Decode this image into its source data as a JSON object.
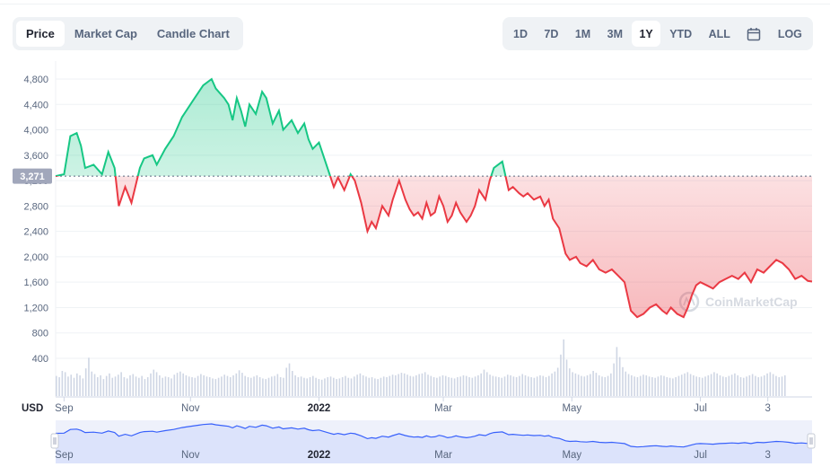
{
  "controls": {
    "left_tabs": [
      {
        "label": "Price",
        "active": true
      },
      {
        "label": "Market Cap",
        "active": false
      },
      {
        "label": "Candle Chart",
        "active": false
      }
    ],
    "ranges": [
      {
        "label": "1D",
        "active": false
      },
      {
        "label": "7D",
        "active": false
      },
      {
        "label": "1M",
        "active": false
      },
      {
        "label": "3M",
        "active": false
      },
      {
        "label": "1Y",
        "active": true
      },
      {
        "label": "YTD",
        "active": false
      },
      {
        "label": "ALL",
        "active": false
      }
    ],
    "calendar_icon": "calendar-icon",
    "log_label": "LOG"
  },
  "watermark": "CoinMarketCap",
  "colors": {
    "up": "#16c784",
    "down": "#ea3943",
    "volume": "#cfd6e4",
    "navigator_line": "#3861fb",
    "reference_label_bg": "#a1a7bb"
  },
  "chart_data": {
    "type": "area",
    "currency_label": "USD",
    "reference_price": 3271,
    "reference_label": "3,271",
    "y_ticks": [
      "4,800",
      "4,400",
      "4,000",
      "3,600",
      "3,200",
      "2,800",
      "2,400",
      "2,000",
      "1,600",
      "1,200",
      "800",
      "400"
    ],
    "y_tick_values": [
      4800,
      4400,
      4000,
      3600,
      3200,
      2800,
      2400,
      2000,
      1600,
      1200,
      800,
      400
    ],
    "ylim": [
      200,
      5000
    ],
    "x_ticks": [
      {
        "label": "Sep",
        "day": 4,
        "bold": false
      },
      {
        "label": "Nov",
        "day": 64,
        "bold": false
      },
      {
        "label": "2022",
        "day": 125,
        "bold": true
      },
      {
        "label": "Mar",
        "day": 184,
        "bold": false
      },
      {
        "label": "May",
        "day": 245,
        "bold": false
      },
      {
        "label": "Jul",
        "day": 306,
        "bold": false
      },
      {
        "label": "3",
        "day": 338,
        "bold": false
      }
    ],
    "xlim": [
      0,
      359
    ],
    "series": [
      {
        "x": [
          0,
          4,
          7,
          10,
          12,
          14,
          18,
          22,
          25,
          28,
          30,
          33,
          36,
          40,
          42,
          46,
          48,
          52,
          56,
          60,
          62,
          65,
          68,
          70,
          74,
          76,
          80,
          82,
          84,
          86,
          88,
          90,
          92,
          95,
          98,
          100,
          103,
          106,
          108,
          112,
          115,
          118,
          120,
          122,
          125,
          128,
          130,
          132,
          134,
          137,
          140,
          142,
          145,
          148,
          150,
          152,
          155,
          158,
          160,
          163,
          166,
          168,
          170,
          172,
          174,
          176,
          178,
          180,
          182,
          184,
          186,
          188,
          190,
          192,
          195,
          197,
          199,
          201,
          204,
          206,
          208,
          212,
          215,
          217,
          220,
          222,
          224,
          227,
          230,
          232,
          234,
          236,
          239,
          242,
          244,
          247,
          249,
          252,
          255,
          258,
          261,
          264,
          267,
          270,
          273,
          276,
          279,
          282,
          285,
          288,
          290,
          292,
          295,
          298,
          300,
          302,
          304,
          306,
          309,
          312,
          315,
          318,
          321,
          324,
          327,
          330,
          333,
          336,
          339,
          342,
          345,
          348,
          351,
          354,
          357,
          359
        ],
        "values": [
          3271,
          3300,
          3900,
          3950,
          3750,
          3400,
          3450,
          3300,
          3650,
          3400,
          2800,
          3100,
          2850,
          3400,
          3550,
          3600,
          3450,
          3700,
          3900,
          4200,
          4300,
          4450,
          4600,
          4700,
          4800,
          4650,
          4500,
          4400,
          4150,
          4500,
          4300,
          4050,
          4400,
          4250,
          4600,
          4500,
          4100,
          4300,
          4000,
          4150,
          3950,
          4100,
          3850,
          3700,
          3800,
          3500,
          3300,
          3100,
          3250,
          3050,
          3300,
          3200,
          2850,
          2400,
          2550,
          2450,
          2800,
          2650,
          2900,
          3200,
          2900,
          2750,
          2650,
          2700,
          2600,
          2850,
          2650,
          2700,
          2950,
          2800,
          2550,
          2650,
          2850,
          2700,
          2550,
          2650,
          2800,
          3050,
          2900,
          3200,
          3400,
          3500,
          3050,
          3100,
          3000,
          2950,
          3000,
          2900,
          2950,
          2800,
          2900,
          2600,
          2450,
          2050,
          1950,
          2000,
          1900,
          1850,
          1950,
          1800,
          1750,
          1800,
          1700,
          1600,
          1150,
          1050,
          1100,
          1200,
          1250,
          1150,
          1100,
          1200,
          1100,
          1050,
          1200,
          1400,
          1550,
          1600,
          1550,
          1500,
          1600,
          1650,
          1700,
          1650,
          1750,
          1600,
          1800,
          1750,
          1850,
          1950,
          1900,
          1800,
          1650,
          1700,
          1620,
          1610
        ]
      }
    ],
    "volume": {
      "x_step_days": 1.4,
      "values": [
        0.32,
        0.3,
        0.4,
        0.38,
        0.31,
        0.34,
        0.29,
        0.36,
        0.33,
        0.28,
        0.44,
        0.61,
        0.39,
        0.35,
        0.3,
        0.33,
        0.27,
        0.32,
        0.36,
        0.29,
        0.31,
        0.34,
        0.38,
        0.3,
        0.28,
        0.33,
        0.35,
        0.31,
        0.29,
        0.32,
        0.27,
        0.3,
        0.36,
        0.42,
        0.38,
        0.33,
        0.29,
        0.31,
        0.3,
        0.28,
        0.34,
        0.37,
        0.39,
        0.36,
        0.33,
        0.31,
        0.3,
        0.29,
        0.32,
        0.35,
        0.33,
        0.31,
        0.3,
        0.28,
        0.27,
        0.29,
        0.31,
        0.34,
        0.32,
        0.3,
        0.33,
        0.36,
        0.41,
        0.37,
        0.32,
        0.3,
        0.29,
        0.31,
        0.33,
        0.3,
        0.28,
        0.27,
        0.29,
        0.31,
        0.32,
        0.35,
        0.3,
        0.29,
        0.45,
        0.52,
        0.4,
        0.33,
        0.3,
        0.31,
        0.29,
        0.28,
        0.3,
        0.32,
        0.29,
        0.27,
        0.26,
        0.28,
        0.3,
        0.31,
        0.29,
        0.27,
        0.28,
        0.3,
        0.32,
        0.29,
        0.28,
        0.31,
        0.34,
        0.36,
        0.33,
        0.31,
        0.29,
        0.3,
        0.28,
        0.27,
        0.29,
        0.31,
        0.3,
        0.32,
        0.34,
        0.33,
        0.35,
        0.37,
        0.36,
        0.34,
        0.32,
        0.31,
        0.33,
        0.35,
        0.36,
        0.38,
        0.34,
        0.32,
        0.3,
        0.29,
        0.31,
        0.33,
        0.32,
        0.3,
        0.29,
        0.28,
        0.3,
        0.31,
        0.33,
        0.32,
        0.3,
        0.29,
        0.31,
        0.33,
        0.36,
        0.42,
        0.38,
        0.34,
        0.32,
        0.31,
        0.3,
        0.29,
        0.31,
        0.34,
        0.33,
        0.31,
        0.3,
        0.32,
        0.35,
        0.33,
        0.31,
        0.3,
        0.29,
        0.31,
        0.33,
        0.32,
        0.3,
        0.32,
        0.36,
        0.39,
        0.45,
        0.66,
        0.9,
        0.58,
        0.44,
        0.38,
        0.36,
        0.34,
        0.32,
        0.31,
        0.33,
        0.35,
        0.4,
        0.37,
        0.33,
        0.31,
        0.3,
        0.32,
        0.36,
        0.52,
        0.78,
        0.62,
        0.46,
        0.39,
        0.35,
        0.33,
        0.31,
        0.3,
        0.32,
        0.34,
        0.33,
        0.31,
        0.3,
        0.29,
        0.31,
        0.33,
        0.32,
        0.3,
        0.29,
        0.28,
        0.3,
        0.32,
        0.34,
        0.36,
        0.38,
        0.35,
        0.33,
        0.31,
        0.3,
        0.29,
        0.31,
        0.33,
        0.35,
        0.38,
        0.36,
        0.33,
        0.31,
        0.3,
        0.32,
        0.34,
        0.36,
        0.33,
        0.3,
        0.29,
        0.31,
        0.33,
        0.35,
        0.32,
        0.3,
        0.31,
        0.33,
        0.36,
        0.38,
        0.35,
        0.32,
        0.3,
        0.31,
        0.33
      ]
    },
    "navigator": {
      "x_ticks": [
        {
          "label": "Sep",
          "day": 4,
          "bold": false
        },
        {
          "label": "Nov",
          "day": 64,
          "bold": false
        },
        {
          "label": "2022",
          "day": 125,
          "bold": true
        },
        {
          "label": "Mar",
          "day": 184,
          "bold": false
        },
        {
          "label": "May",
          "day": 245,
          "bold": false
        },
        {
          "label": "Jul",
          "day": 306,
          "bold": false
        },
        {
          "label": "3",
          "day": 338,
          "bold": false
        }
      ]
    }
  }
}
